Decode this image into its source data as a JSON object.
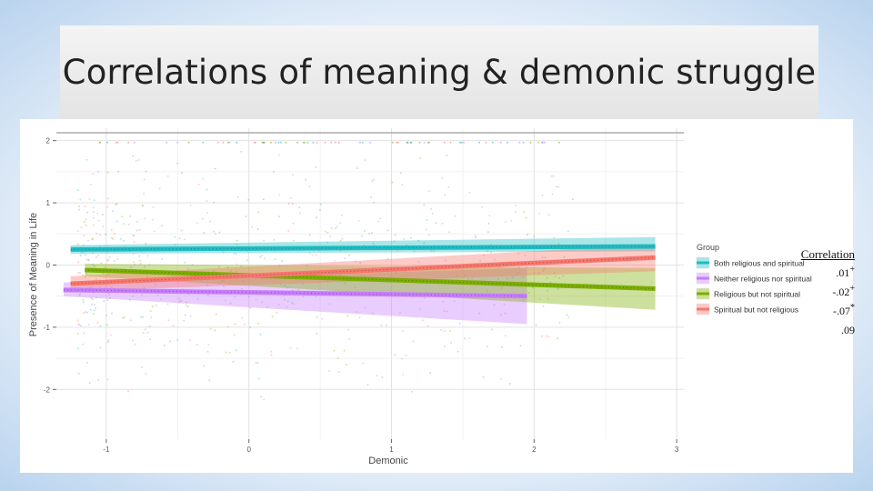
{
  "slide": {
    "title": "Correlations of meaning & demonic struggle"
  },
  "correlation_table": {
    "heading": "Correlation",
    "values": [
      ".01",
      "-.02",
      "-.07",
      ".09"
    ],
    "markers": [
      "+",
      "+",
      "*",
      ""
    ]
  },
  "chart_data": {
    "type": "line",
    "title": "",
    "xlabel": "Demonic",
    "ylabel": "Presence of Meaning in Life",
    "xlim": [
      -1.35,
      3.05
    ],
    "ylim": [
      -2.8,
      2.2
    ],
    "x_ticks": [
      -1,
      0,
      1,
      2,
      3
    ],
    "x_tick_labels": [
      "-1",
      "0",
      "1",
      "2",
      "3"
    ],
    "y_ticks": [
      2,
      1,
      0,
      -1,
      -2
    ],
    "y_tick_labels": [
      "2",
      "1",
      "0",
      "-1",
      "-2"
    ],
    "grid": true,
    "legend_title": "Group",
    "legend_position": "right",
    "series": [
      {
        "name": "Both religious and spiritual",
        "color": "#1fbdc3",
        "x": [
          -1.25,
          2.85
        ],
        "y": [
          0.25,
          0.3
        ],
        "ci_lower": [
          0.18,
          0.22
        ],
        "ci_upper": [
          0.32,
          0.45
        ]
      },
      {
        "name": "Neither religious nor spiritual",
        "color": "#c77cff",
        "x": [
          -1.3,
          1.95
        ],
        "y": [
          -0.4,
          -0.5
        ],
        "ci_lower": [
          -0.5,
          -0.95
        ],
        "ci_upper": [
          -0.28,
          -0.05
        ]
      },
      {
        "name": "Religious but not spiritual",
        "color": "#7cae00",
        "x": [
          -1.15,
          2.85
        ],
        "y": [
          -0.08,
          -0.38
        ],
        "ci_lower": [
          -0.18,
          -0.72
        ],
        "ci_upper": [
          0.02,
          -0.05
        ]
      },
      {
        "name": "Spiritual but not religious",
        "color": "#f8766d",
        "x": [
          -1.25,
          2.85
        ],
        "y": [
          -0.3,
          0.12
        ],
        "ci_lower": [
          -0.42,
          -0.1
        ],
        "ci_upper": [
          -0.18,
          0.33
        ]
      }
    ]
  }
}
